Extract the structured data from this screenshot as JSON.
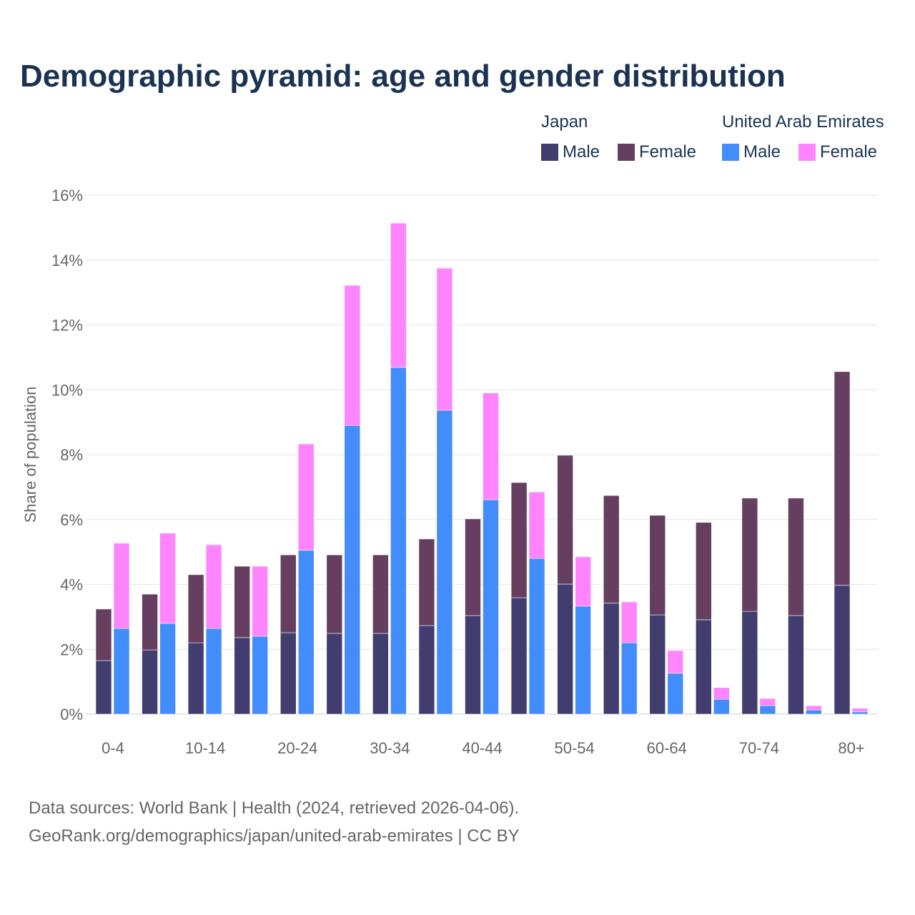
{
  "chart_data": {
    "type": "bar",
    "stacked": true,
    "title": "Demographic pyramid: age and gender distribution",
    "ylabel": "Share of population",
    "xlabel": "",
    "ylim": [
      0,
      16
    ],
    "yticks": [
      "0%",
      "2%",
      "4%",
      "6%",
      "8%",
      "10%",
      "12%",
      "14%",
      "16%"
    ],
    "ytick_values": [
      0,
      2,
      4,
      6,
      8,
      10,
      12,
      14,
      16
    ],
    "grid": true,
    "legend_placement": "top-right",
    "categories": [
      "0-4",
      "5-9",
      "10-14",
      "15-19",
      "20-24",
      "25-29",
      "30-34",
      "35-39",
      "40-44",
      "45-49",
      "50-54",
      "55-59",
      "60-64",
      "65-69",
      "70-74",
      "75-79",
      "80+"
    ],
    "xtick_labels": [
      "0-4",
      "",
      "10-14",
      "",
      "20-24",
      "",
      "30-34",
      "",
      "40-44",
      "",
      "50-54",
      "",
      "60-64",
      "",
      "70-74",
      "",
      "80+"
    ],
    "groups": [
      {
        "name": "Japan",
        "series": [
          {
            "name": "Male",
            "color": "#413d6f",
            "values": [
              1.65,
              1.98,
              2.2,
              2.36,
              2.51,
              2.49,
              2.49,
              2.73,
              3.04,
              3.59,
              4.01,
              3.42,
              3.06,
              2.91,
              3.17,
              3.04,
              3.97
            ]
          },
          {
            "name": "Female",
            "color": "#663f60",
            "values": [
              1.59,
              1.72,
              2.1,
              2.2,
              2.4,
              2.42,
              2.42,
              2.67,
              2.98,
              3.55,
              3.97,
              3.32,
              3.07,
              3.0,
              3.49,
              3.62,
              6.59
            ]
          }
        ]
      },
      {
        "name": "United Arab Emirates",
        "series": [
          {
            "name": "Male",
            "color": "#428cfc",
            "values": [
              2.64,
              2.8,
              2.64,
              2.4,
              5.05,
              8.9,
              10.69,
              9.37,
              6.61,
              4.8,
              3.33,
              2.2,
              1.26,
              0.46,
              0.26,
              0.13,
              0.07
            ]
          },
          {
            "name": "Female",
            "color": "#fe85fd",
            "values": [
              2.63,
              2.78,
              2.58,
              2.16,
              3.28,
              4.32,
              4.45,
              4.38,
              3.29,
              2.05,
              1.52,
              1.26,
              0.7,
              0.36,
              0.22,
              0.13,
              0.11
            ]
          }
        ]
      }
    ]
  },
  "legend": {
    "japan": "Japan",
    "uae": "United Arab Emirates",
    "male": "Male",
    "female": "Female"
  },
  "footer": {
    "line1": "Data sources: World Bank | Health (2024, retrieved 2026-04-06).",
    "line2": "GeoRank.org/demographics/japan/united-arab-emirates | CC BY"
  }
}
